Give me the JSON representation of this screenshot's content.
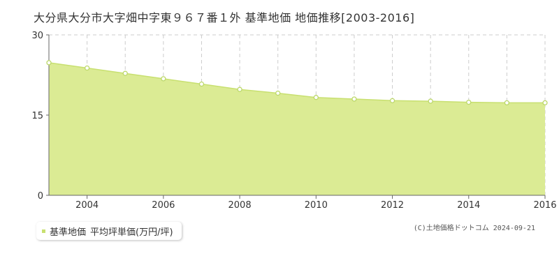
{
  "title": "大分県大分市大字畑中字東９６７番１外 基準地価 地価推移[2003-2016]",
  "legend": {
    "series_label": "基準地価",
    "unit_label": "平均坪単価(万円/坪)"
  },
  "credit": {
    "text": "(C)土地価格ドットコム 2024-09-21"
  },
  "colors": {
    "fill": "#dbeb94",
    "line": "#c8e070",
    "point_stroke": "#bcd86a",
    "grid": "#cccccc",
    "axis": "#666666",
    "text": "#333333"
  },
  "chart_data": {
    "type": "area",
    "title": "大分県大分市大字畑中字東９６７番１外 基準地価 地価推移[2003-2016]",
    "xlabel": "",
    "ylabel": "",
    "x": [
      2003,
      2004,
      2005,
      2006,
      2007,
      2008,
      2009,
      2010,
      2011,
      2012,
      2013,
      2014,
      2015,
      2016
    ],
    "series": [
      {
        "name": "基準地価 平均坪単価(万円/坪)",
        "values": [
          24.8,
          23.8,
          22.8,
          21.8,
          20.8,
          19.8,
          19.1,
          18.3,
          18.0,
          17.7,
          17.6,
          17.4,
          17.3,
          17.3
        ]
      }
    ],
    "xlim": [
      2003,
      2016
    ],
    "ylim": [
      0,
      30
    ],
    "yticks": [
      0,
      15,
      30
    ],
    "xticks": [
      2004,
      2006,
      2008,
      2010,
      2012,
      2014,
      2016
    ],
    "grid": true,
    "legend_position": "bottom-left"
  }
}
